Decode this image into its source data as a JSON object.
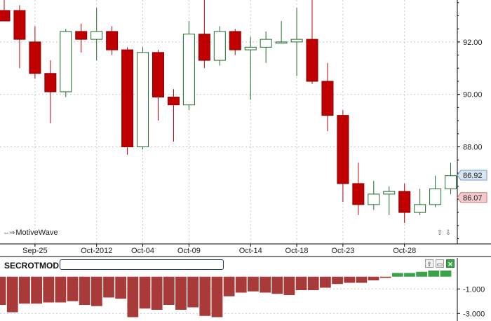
{
  "chart_data": [
    {
      "type": "candlestick",
      "title": "",
      "price_labels": [
        "92.00",
        "90.00",
        "88.00"
      ],
      "y_ticks": [
        92,
        90,
        88
      ],
      "ylim": [
        84.3,
        93.6
      ],
      "x_labels": [
        "Sep-25",
        "Oct-2012",
        "Oct-04",
        "Oct-09",
        "Oct-14",
        "Oct-18",
        "Oct-23",
        "Oct-28"
      ],
      "x_label_bar_index": [
        2,
        6,
        9,
        12,
        16,
        19,
        22,
        26
      ],
      "last_price": "86.92",
      "prev_price": "86.07",
      "last_price_value": 86.92,
      "prev_price_value": 86.07,
      "candles": [
        {
          "o": 93.2,
          "h": 93.6,
          "l": 92.8,
          "c": 92.8
        },
        {
          "o": 93.2,
          "h": 93.4,
          "l": 91.0,
          "c": 92.1
        },
        {
          "o": 92.0,
          "h": 92.6,
          "l": 90.6,
          "c": 90.8
        },
        {
          "o": 90.8,
          "h": 91.3,
          "l": 88.9,
          "c": 90.1
        },
        {
          "o": 90.1,
          "h": 92.5,
          "l": 89.9,
          "c": 92.4
        },
        {
          "o": 92.4,
          "h": 92.7,
          "l": 91.6,
          "c": 92.1
        },
        {
          "o": 92.1,
          "h": 93.3,
          "l": 91.3,
          "c": 92.4
        },
        {
          "o": 92.4,
          "h": 92.6,
          "l": 91.5,
          "c": 91.7
        },
        {
          "o": 91.7,
          "h": 91.8,
          "l": 87.7,
          "c": 88.0
        },
        {
          "o": 88.0,
          "h": 91.8,
          "l": 87.9,
          "c": 91.6
        },
        {
          "o": 91.6,
          "h": 91.7,
          "l": 89.0,
          "c": 89.9
        },
        {
          "o": 89.9,
          "h": 90.2,
          "l": 88.2,
          "c": 89.6
        },
        {
          "o": 89.6,
          "h": 92.8,
          "l": 89.4,
          "c": 92.3
        },
        {
          "o": 92.3,
          "h": 93.8,
          "l": 91.0,
          "c": 91.3
        },
        {
          "o": 91.3,
          "h": 92.6,
          "l": 91.1,
          "c": 92.4
        },
        {
          "o": 92.4,
          "h": 92.5,
          "l": 91.5,
          "c": 91.7
        },
        {
          "o": 91.7,
          "h": 92.2,
          "l": 89.8,
          "c": 91.8
        },
        {
          "o": 91.8,
          "h": 92.4,
          "l": 91.2,
          "c": 92.1
        },
        {
          "o": 92.0,
          "h": 92.8,
          "l": 92.0,
          "c": 92.0
        },
        {
          "o": 92.0,
          "h": 93.3,
          "l": 90.7,
          "c": 92.1
        },
        {
          "o": 92.1,
          "h": 93.6,
          "l": 90.4,
          "c": 90.5
        },
        {
          "o": 90.5,
          "h": 91.2,
          "l": 88.6,
          "c": 89.2
        },
        {
          "o": 89.2,
          "h": 89.4,
          "l": 85.9,
          "c": 86.6
        },
        {
          "o": 86.6,
          "h": 87.4,
          "l": 85.4,
          "c": 85.8
        },
        {
          "o": 85.8,
          "h": 86.7,
          "l": 85.6,
          "c": 86.2
        },
        {
          "o": 86.2,
          "h": 86.5,
          "l": 85.4,
          "c": 86.3
        },
        {
          "o": 86.3,
          "h": 86.6,
          "l": 85.1,
          "c": 85.5
        },
        {
          "o": 85.5,
          "h": 86.4,
          "l": 85.4,
          "c": 85.8
        },
        {
          "o": 85.8,
          "h": 86.9,
          "l": 85.7,
          "c": 86.4
        },
        {
          "o": 86.4,
          "h": 87.4,
          "l": 86.2,
          "c": 86.9
        }
      ]
    },
    {
      "type": "bar",
      "title": "SECROTMOD",
      "y_labels": [
        "-1.000",
        "-3.000"
      ],
      "y_ticks": [
        -1,
        -3
      ],
      "ylim": [
        -3.5,
        0.5
      ],
      "values": [
        -2.3,
        -2.9,
        -2.2,
        -2.2,
        -2.1,
        -2.1,
        -2.0,
        -2.3,
        -2.4,
        -1.7,
        -1.8,
        -3.3,
        -2.6,
        -2.7,
        -2.3,
        -2.7,
        -2.5,
        -3.2,
        -3.3,
        -1.6,
        -1.3,
        -1.2,
        -1.3,
        -1.4,
        -1.5,
        -1.1,
        -1.1,
        -0.9,
        -0.6,
        -0.5,
        -0.5,
        -0.3,
        -0.1,
        0.3,
        0.3,
        0.4,
        0.5,
        0.5
      ]
    }
  ],
  "watermark": {
    "arrows": "⇔⇒",
    "label": "MotiveWave"
  },
  "zoom": {
    "up": "⇧",
    "down": "⇩"
  },
  "indicator_panel": {
    "title": "SECROTMOD",
    "controls": [
      "⇧",
      "▭",
      "✕"
    ]
  },
  "colors": {
    "up": "#1f6b2a",
    "down": "#c00000",
    "wick": "#333333",
    "ind_neg": "#a83a3a",
    "ind_pos": "#3aa34a",
    "last_tag": "#d6e6f5",
    "prev_tag": "#f3c9c9"
  }
}
